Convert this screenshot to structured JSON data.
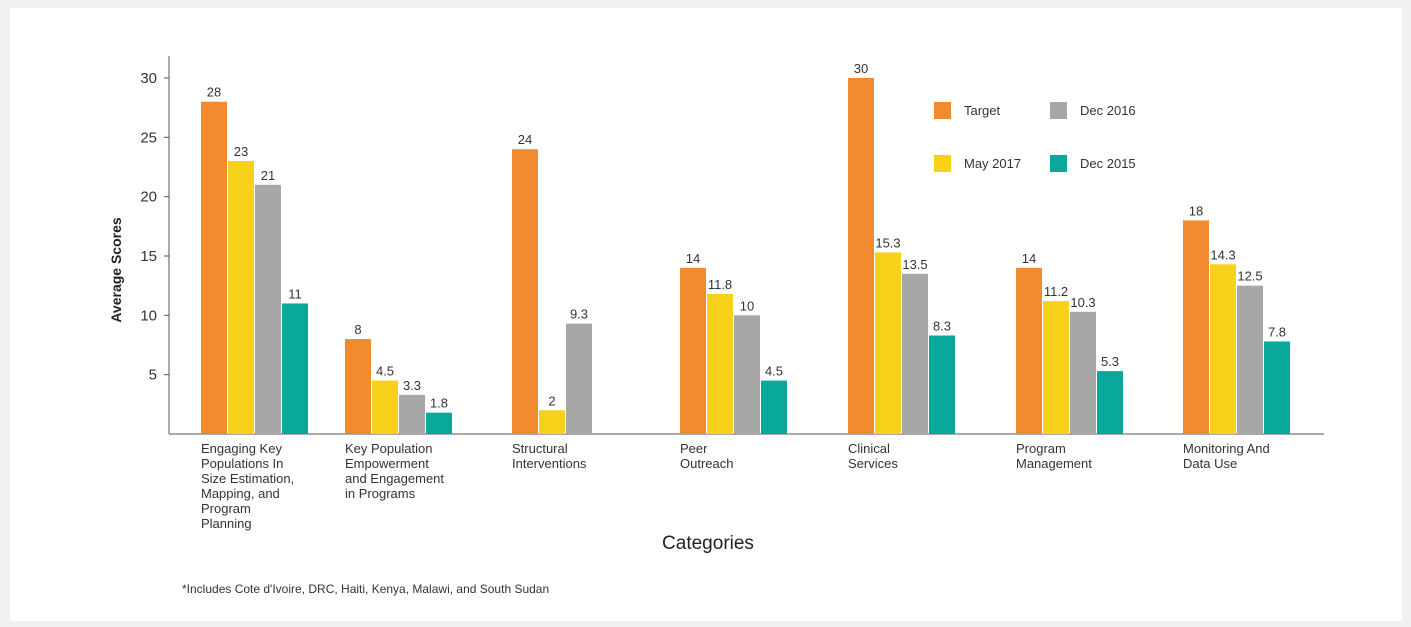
{
  "chart_data": {
    "type": "bar",
    "title": "",
    "xlabel": "Categories",
    "ylabel": "Average Scores",
    "ylim": [
      0,
      30
    ],
    "yticks": [
      5,
      10,
      15,
      20,
      25,
      30
    ],
    "grid": false,
    "legend_position": "top-right",
    "categories": [
      [
        "Engaging Key",
        "Populations In",
        "Size Estimation,",
        "Mapping, and",
        "Program",
        "Planning"
      ],
      [
        "Key Population",
        "Empowerment",
        "and Engagement",
        "in Programs"
      ],
      [
        "Structural",
        "Interventions"
      ],
      [
        "Peer",
        "Outreach"
      ],
      [
        "Clinical",
        "Services"
      ],
      [
        "Program",
        "Management"
      ],
      [
        "Monitoring And",
        "Data Use"
      ]
    ],
    "series": [
      {
        "name": "Target",
        "color": "#f28a30",
        "values": [
          28,
          8,
          24,
          14,
          30,
          14,
          18
        ],
        "labels": [
          "28",
          "8",
          "24",
          "14",
          "30",
          "14",
          "18"
        ]
      },
      {
        "name": "May 2017",
        "color": "#f7d11a",
        "values": [
          23,
          4.5,
          2,
          11.8,
          15.3,
          11.2,
          14.3
        ],
        "labels": [
          "23",
          "4.5",
          "2",
          "11.8",
          "15.3",
          "11.2",
          "14.3"
        ]
      },
      {
        "name": "Dec 2016",
        "color": "#a7a7a7",
        "values": [
          21,
          3.3,
          9.3,
          10,
          13.5,
          10.3,
          12.5
        ],
        "labels": [
          "21",
          "3.3",
          "9.3",
          "10",
          "13.5",
          "10.3",
          "12.5"
        ]
      },
      {
        "name": "Dec 2015",
        "color": "#0aa89b",
        "values": [
          11,
          1.8,
          null,
          4.5,
          8.3,
          5.3,
          7.8
        ],
        "labels": [
          "11",
          "1.8",
          "",
          "4.5",
          "8.3",
          "5.3",
          "7.8"
        ]
      }
    ]
  },
  "footnote": "*Includes Cote d'Ivoire, DRC, Haiti, Kenya, Malawi, and South Sudan"
}
